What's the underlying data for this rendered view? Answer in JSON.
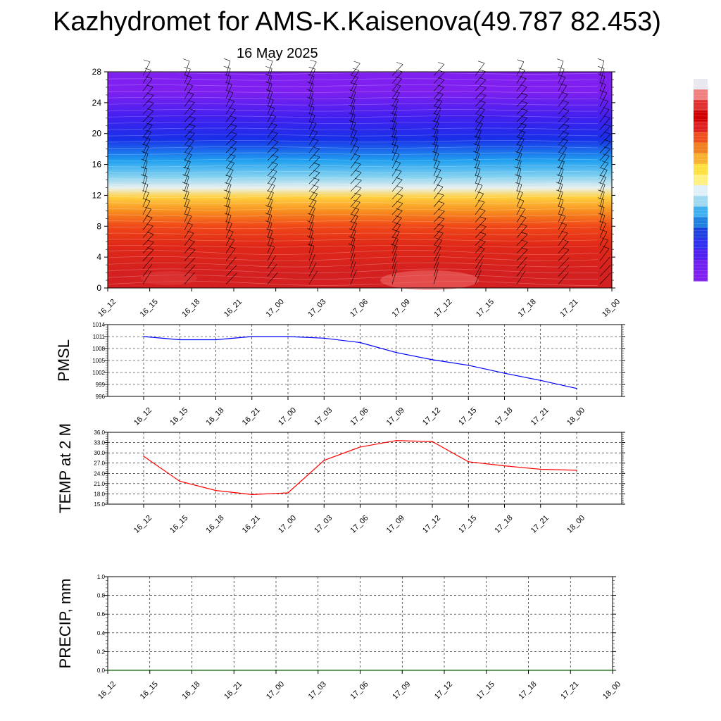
{
  "title": "Kazhydromet for AMS-K.Kaisenova(49.787 82.453)",
  "subtitle": "16 May 2025",
  "colors": {
    "pmsl_line": "#0000ff",
    "temp_line": "#ff0000",
    "precip_line": "#006400",
    "colorbar": [
      "#e8e8f0",
      "#f08080",
      "#e03030",
      "#d00000",
      "#e02020",
      "#f05020",
      "#f08020",
      "#f8b030",
      "#ffe040",
      "#fff080",
      "#e0f0f8",
      "#a0d8f0",
      "#40b0f0",
      "#2080e0",
      "#2040e0",
      "#3030f0",
      "#5020f0",
      "#7020f0",
      "#8020f0"
    ]
  },
  "chart_data": [
    {
      "type": "heatmap",
      "id": "cross-section",
      "x_labels": [
        "16_12",
        "16_15",
        "16_18",
        "16_21",
        "17_00",
        "17_03",
        "17_06",
        "17_09",
        "17_12",
        "17_15",
        "17_18",
        "17_21",
        "18_00"
      ],
      "y_ticks": [
        0,
        4,
        8,
        12,
        16,
        20,
        24,
        28
      ],
      "ylim": [
        0,
        28
      ],
      "bands": [
        {
          "y0": 0,
          "y1": 4,
          "color": "#d42020"
        },
        {
          "y0": 4,
          "y1": 7,
          "color": "#e02818"
        },
        {
          "y0": 7,
          "y1": 9,
          "color": "#f04818"
        },
        {
          "y0": 9,
          "y1": 11,
          "color": "#f89020"
        },
        {
          "y0": 11,
          "y1": 12.5,
          "color": "#ffd040"
        },
        {
          "y0": 12.5,
          "y1": 13.5,
          "color": "#e8f0f0"
        },
        {
          "y0": 13.5,
          "y1": 15.5,
          "color": "#80d0f0"
        },
        {
          "y0": 15.5,
          "y1": 17.5,
          "color": "#20a0f0"
        },
        {
          "y0": 17.5,
          "y1": 21,
          "color": "#1830e8"
        },
        {
          "y0": 21,
          "y1": 23,
          "color": "#4020f0"
        },
        {
          "y0": 23,
          "y1": 28,
          "color": "#8020f0"
        }
      ],
      "wind_barbs": true
    },
    {
      "type": "line",
      "id": "pmsl",
      "ylabel": "PMSL",
      "x_labels": [
        "16_12",
        "16_15",
        "16_18",
        "16_21",
        "17_00",
        "17_03",
        "17_06",
        "17_09",
        "17_12",
        "17_15",
        "17_18",
        "17_21",
        "18_00"
      ],
      "y_ticks": [
        996,
        999,
        1002,
        1005,
        1008,
        1011,
        1014
      ],
      "ylim": [
        996,
        1014
      ],
      "series": [
        {
          "values": [
            1011.0,
            1010.2,
            1010.2,
            1011.0,
            1011.0,
            1010.6,
            1009.5,
            1007.0,
            1005.2,
            1003.8,
            1001.8,
            1000.0,
            998.0
          ]
        }
      ]
    },
    {
      "type": "line",
      "id": "temp",
      "ylabel": "TEMP at 2 M",
      "x_labels": [
        "16_12",
        "16_15",
        "16_18",
        "16_21",
        "17_00",
        "17_03",
        "17_06",
        "17_09",
        "17_12",
        "17_15",
        "17_18",
        "17_21",
        "18_00"
      ],
      "y_ticks": [
        "15.0",
        "18.0",
        "21.0",
        "24.0",
        "27.0",
        "30.0",
        "33.0",
        "36.0"
      ],
      "ylim": [
        15,
        36
      ],
      "series": [
        {
          "values": [
            29.0,
            21.7,
            19.0,
            17.8,
            18.3,
            27.8,
            31.7,
            33.6,
            33.3,
            27.4,
            26.2,
            25.2,
            24.9
          ]
        }
      ]
    },
    {
      "type": "line",
      "id": "precip",
      "ylabel": "PRECIP, mm",
      "x_labels": [
        "16_12",
        "16_15",
        "16_18",
        "16_21",
        "17_00",
        "17_03",
        "17_06",
        "17_09",
        "17_12",
        "17_15",
        "17_18",
        "17_21",
        "18_00"
      ],
      "y_ticks": [
        "0.0",
        "0.2",
        "0.4",
        "0.6",
        "0.8",
        "1.0"
      ],
      "ylim": [
        0,
        1
      ],
      "series": [
        {
          "values": [
            0,
            0,
            0,
            0,
            0,
            0,
            0,
            0,
            0,
            0,
            0,
            0,
            0
          ]
        }
      ]
    }
  ]
}
